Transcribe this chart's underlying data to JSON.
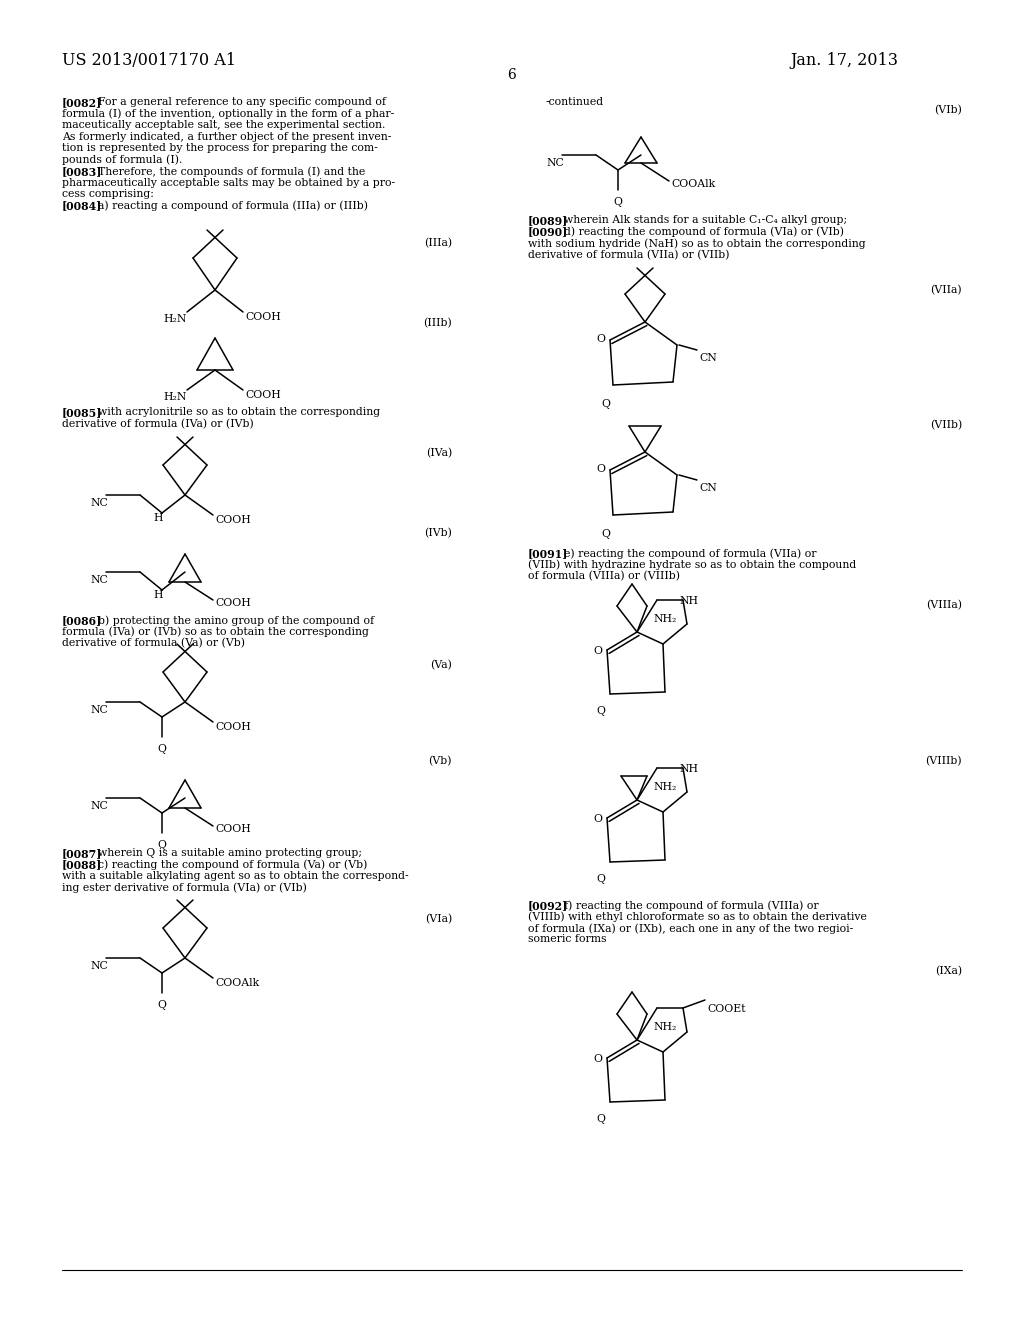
{
  "bg_color": "#ffffff",
  "figsize": [
    10.24,
    13.2
  ],
  "dpi": 100,
  "header_left": "US 2013/0017170 A1",
  "header_right": "Jan. 17, 2013",
  "page_number": "6"
}
